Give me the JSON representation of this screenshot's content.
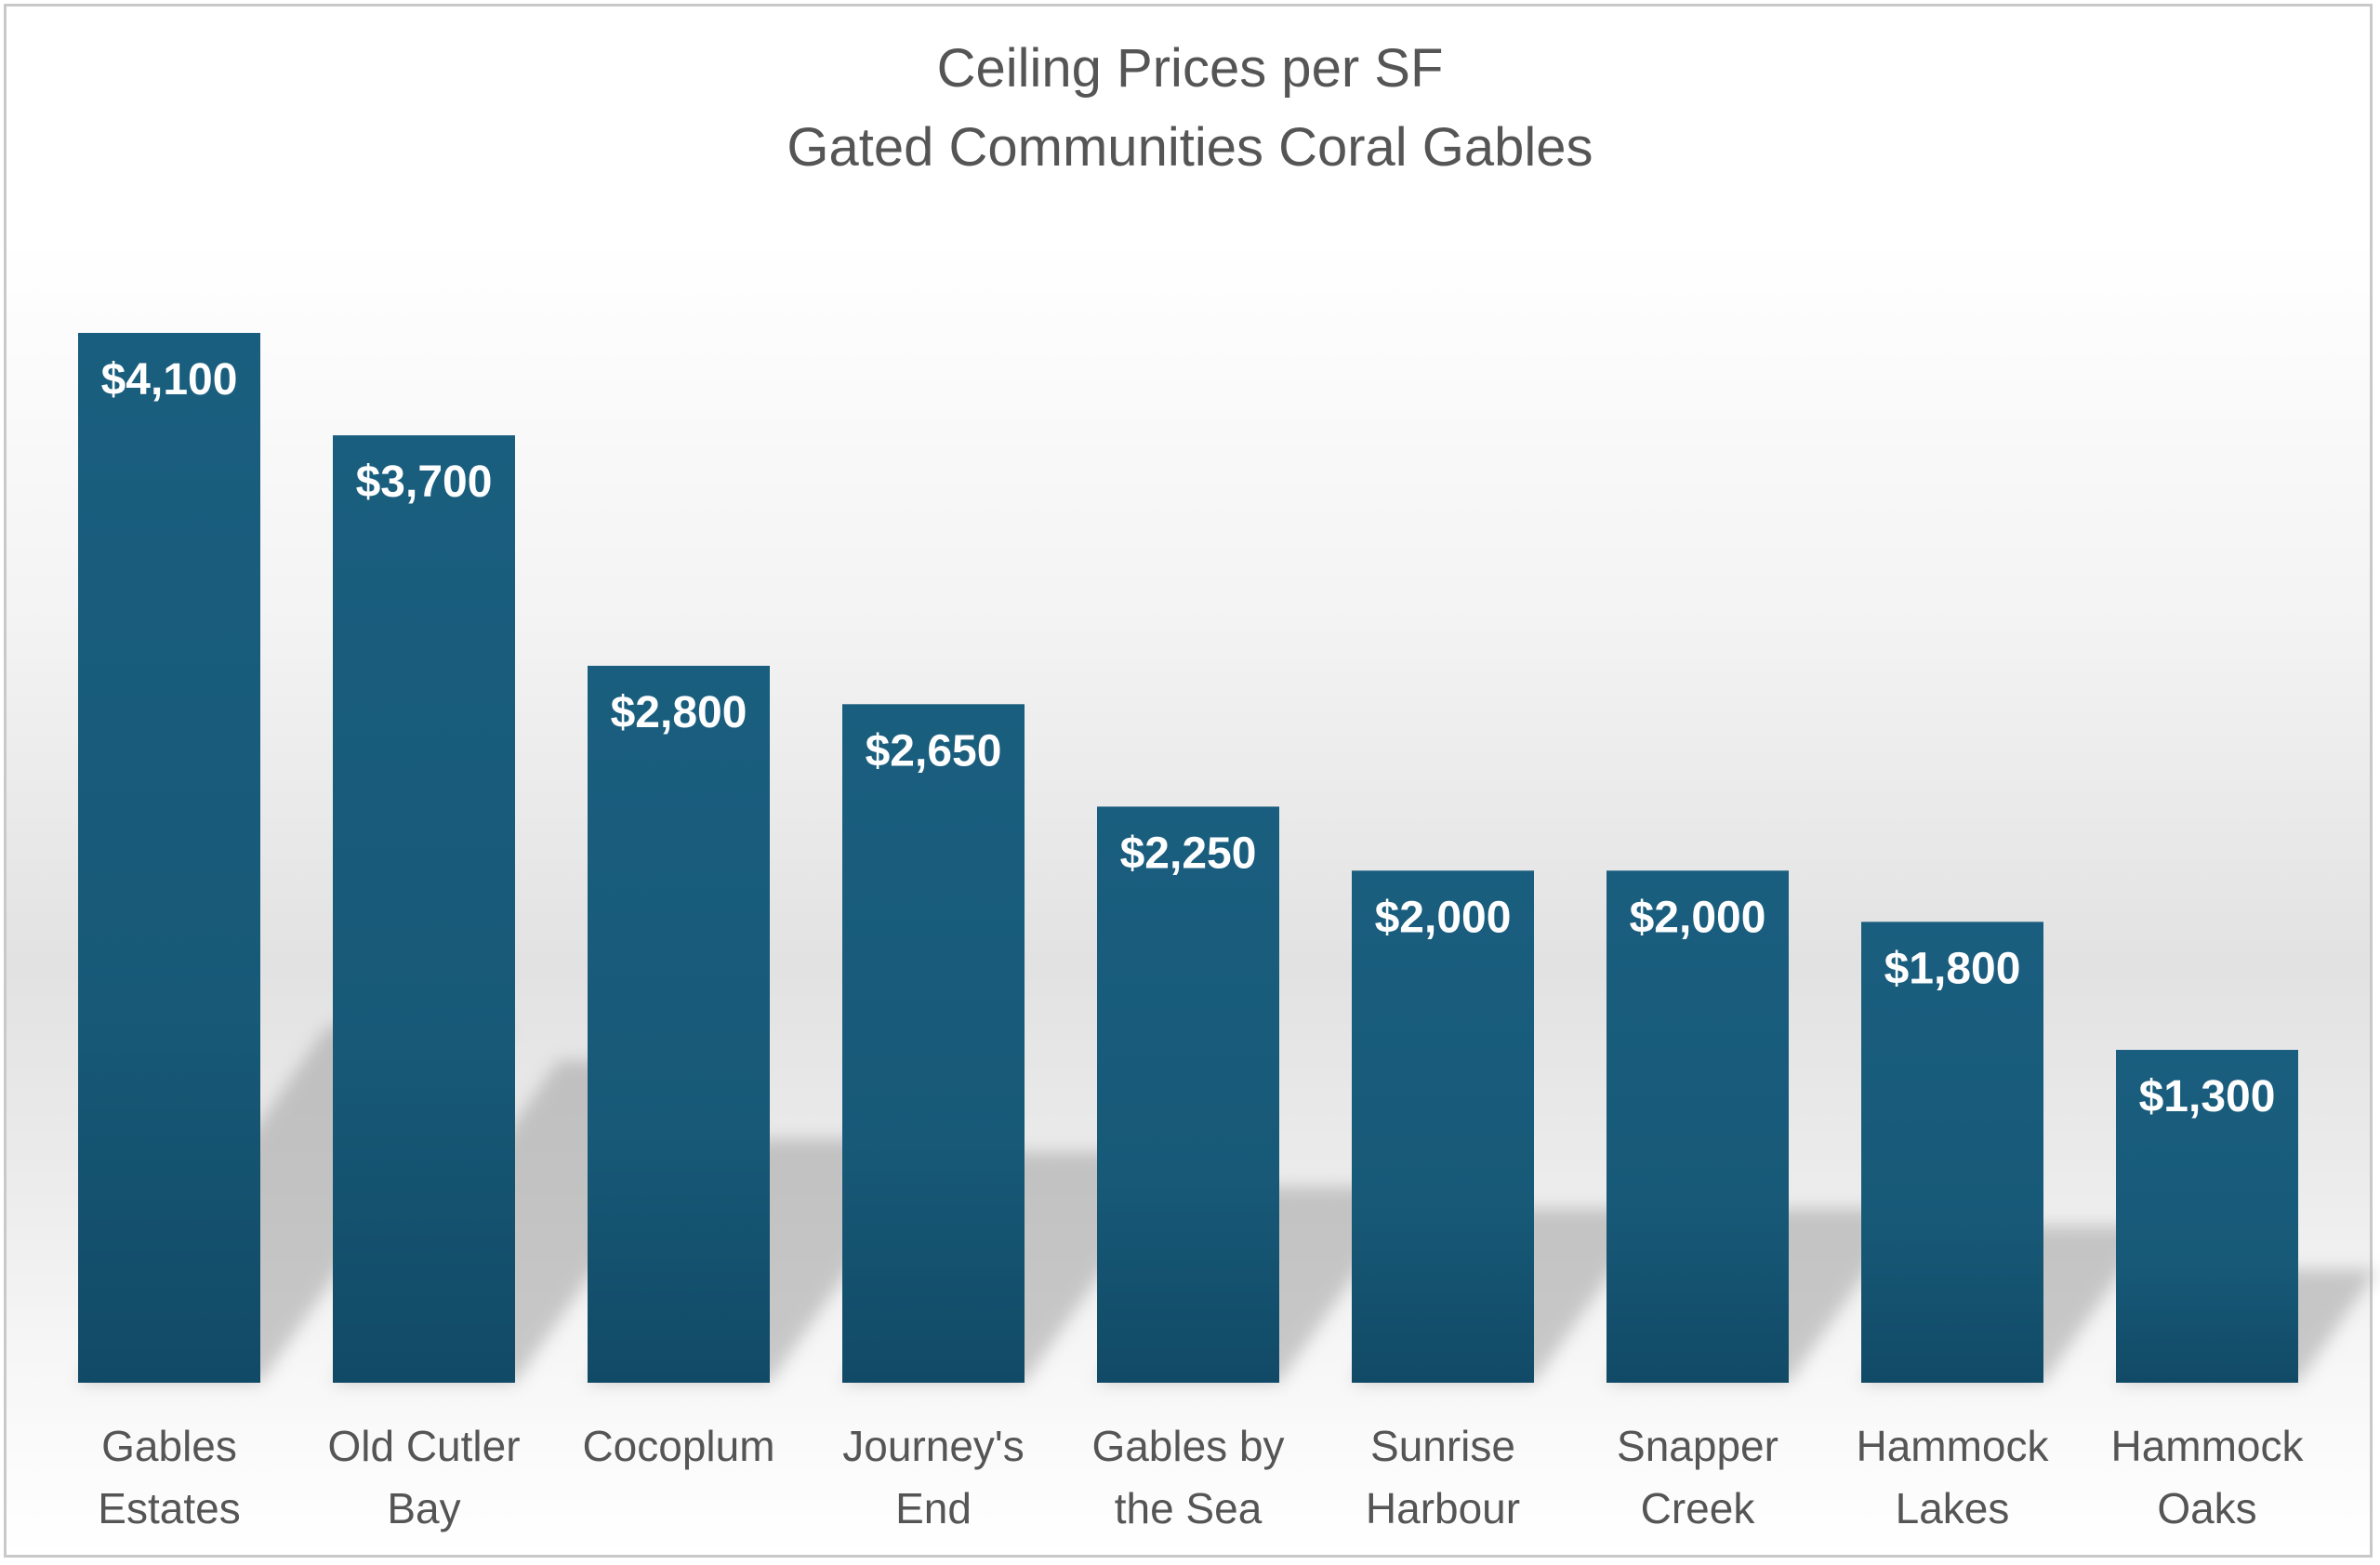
{
  "chart_data": {
    "type": "bar",
    "title": [
      "Ceiling Prices per SF",
      "Gated Communities Coral Gables"
    ],
    "categories": [
      [
        "Gables",
        "Estates"
      ],
      [
        "Old Cutler",
        "Bay"
      ],
      [
        "Cocoplum"
      ],
      [
        "Journey's",
        "End"
      ],
      [
        "Gables by",
        "the Sea"
      ],
      [
        "Sunrise",
        "Harbour"
      ],
      [
        "Snapper",
        "Creek"
      ],
      [
        "Hammock",
        "Lakes"
      ],
      [
        "Hammock",
        "Oaks"
      ]
    ],
    "values": [
      4100,
      3700,
      2800,
      2650,
      2250,
      2000,
      2000,
      1800,
      1300
    ],
    "data_labels": [
      "$4,100",
      "$3,700",
      "$2,800",
      "$2,650",
      "$2,250",
      "$2,000",
      "$2,000",
      "$1,800",
      "$1,300"
    ],
    "ylim": [
      0,
      4100
    ],
    "grid": false,
    "legend": "none",
    "bar_color": "#1a5c7c",
    "shadow": true
  }
}
